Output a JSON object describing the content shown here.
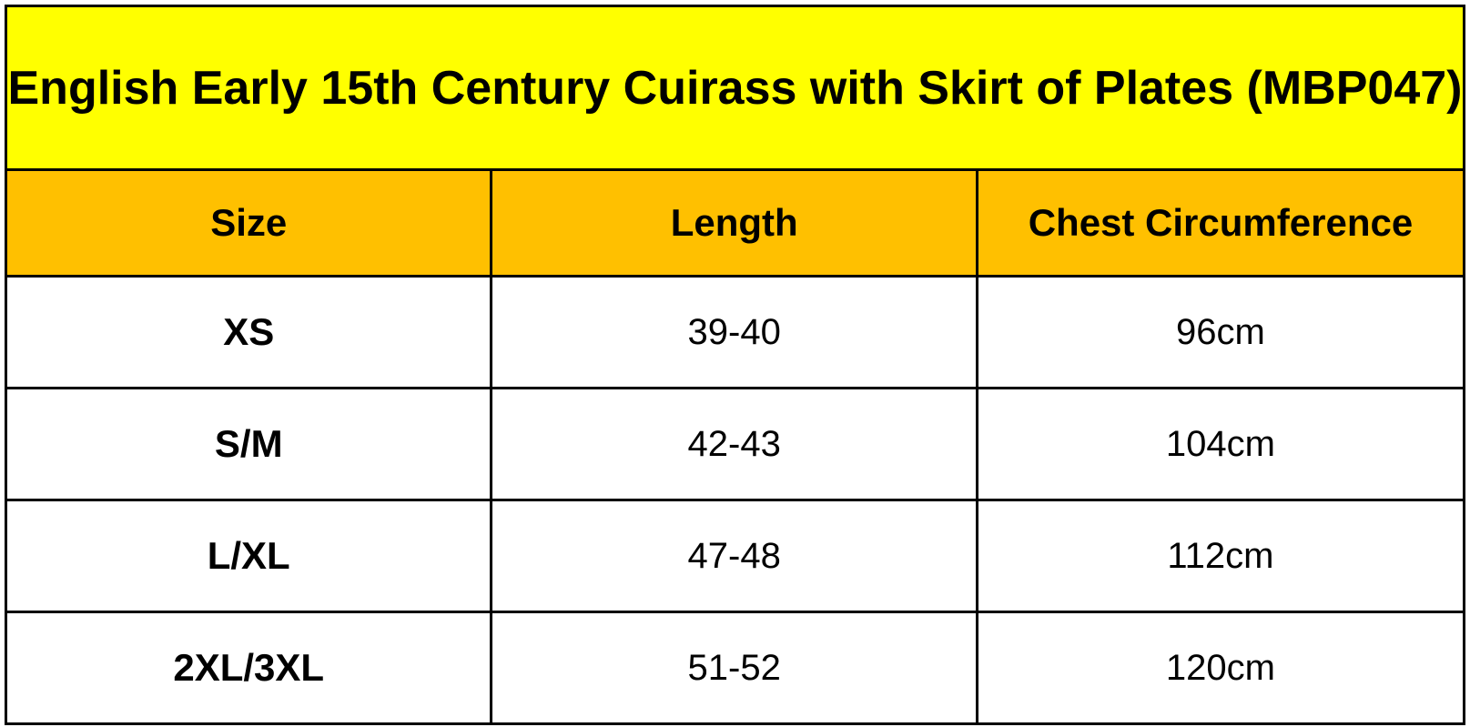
{
  "title": "English Early 15th Century Cuirass with Skirt of Plates (MBP047)",
  "colors": {
    "title_background": "#FFFF00",
    "header_background": "#FFC000",
    "body_background": "#FFFFFF",
    "border": "#000000",
    "text": "#000000"
  },
  "columns": [
    "Size",
    "Length",
    "Chest Circumference"
  ],
  "rows": [
    {
      "size": "XS",
      "length": "39-40",
      "chest": "96cm"
    },
    {
      "size": "S/M",
      "length": "42-43",
      "chest": "104cm"
    },
    {
      "size": "L/XL",
      "length": "47-48",
      "chest": "112cm"
    },
    {
      "size": "2XL/3XL",
      "length": "51-52",
      "chest": "120cm"
    }
  ]
}
